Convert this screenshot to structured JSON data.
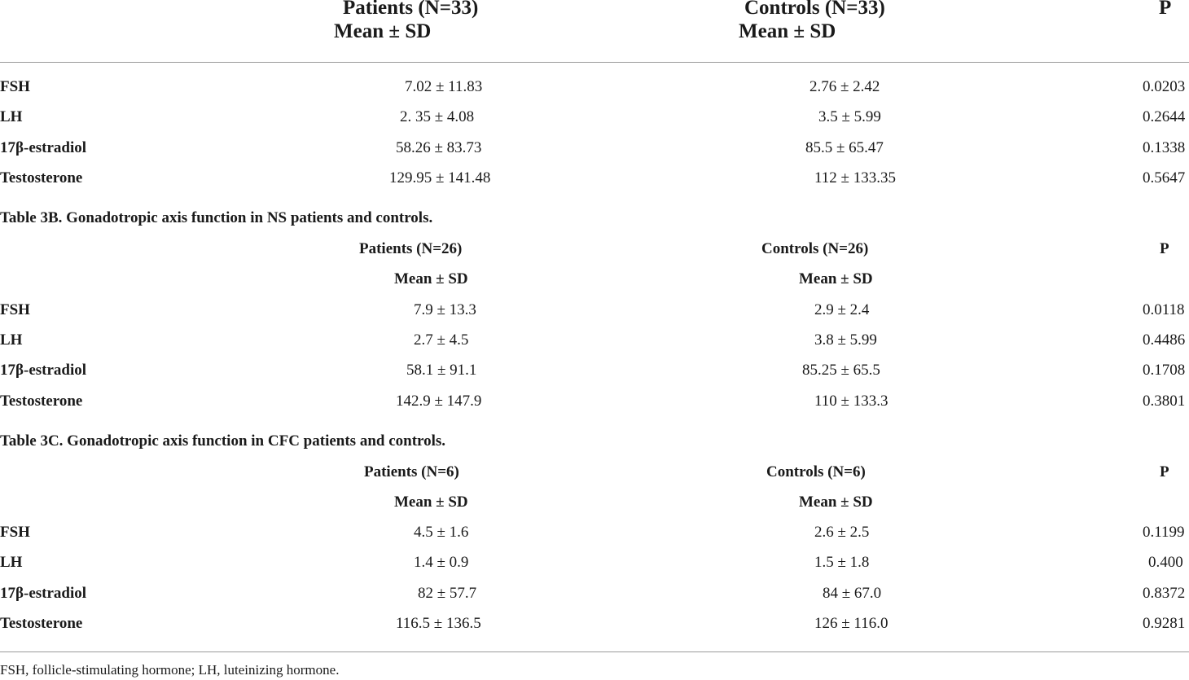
{
  "table_a": {
    "header": {
      "patients": "Patients (N=33)",
      "patients_stat": "Mean ± SD",
      "controls": "Controls (N=33)",
      "controls_stat": "Mean ± SD",
      "p": "P"
    },
    "rows": [
      {
        "label": "FSH",
        "patients": "7.02 ± 11.83",
        "controls": "2.76 ± 2.42",
        "p": "0.0203"
      },
      {
        "label": "LH",
        "patients": "2. 35 ± 4.08",
        "controls": "3.5 ± 5.99",
        "p": "0.2644"
      },
      {
        "label": "17β-estradiol",
        "patients": "58.26 ± 83.73",
        "controls": "85.5 ± 65.47",
        "p": "0.1338"
      },
      {
        "label": "Testosterone",
        "patients": "129.95 ± 141.48",
        "controls": "112 ± 133.35",
        "p": "0.5647"
      }
    ]
  },
  "table_b": {
    "caption": "Table 3B. Gonadotropic axis function in NS patients and controls.",
    "header": {
      "patients": "Patients (N=26)",
      "patients_stat": "Mean ± SD",
      "controls": "Controls (N=26)",
      "controls_stat": "Mean ± SD",
      "p": "P"
    },
    "rows": [
      {
        "label": "FSH",
        "patients": "7.9 ± 13.3",
        "controls": "2.9 ± 2.4",
        "p": "0.0118"
      },
      {
        "label": "LH",
        "patients": "2.7 ± 4.5",
        "controls": "3.8 ± 5.99",
        "p": "0.4486"
      },
      {
        "label": "17β-estradiol",
        "patients": "58.1 ± 91.1",
        "controls": "85.25 ± 65.5",
        "p": "0.1708"
      },
      {
        "label": "Testosterone",
        "patients": "142.9 ± 147.9",
        "controls": "110 ± 133.3",
        "p": "0.3801"
      }
    ]
  },
  "table_c": {
    "caption": "Table 3C. Gonadotropic axis function in CFC patients and controls.",
    "header": {
      "patients": "Patients (N=6)",
      "patients_stat": "Mean ± SD",
      "controls": "Controls (N=6)",
      "controls_stat": "Mean ± SD",
      "p": "P"
    },
    "rows": [
      {
        "label": "FSH",
        "patients": "4.5 ± 1.6",
        "controls": "2.6 ± 2.5",
        "p": "0.1199"
      },
      {
        "label": "LH",
        "patients": "1.4 ± 0.9",
        "controls": "1.5 ± 1.8",
        "p": "0.400"
      },
      {
        "label": "17β-estradiol",
        "patients": "82 ± 57.7",
        "controls": "84 ± 67.0",
        "p": "0.8372"
      },
      {
        "label": "Testosterone",
        "patients": "116.5 ± 136.5",
        "controls": "126 ± 116.0",
        "p": "0.9281"
      }
    ]
  },
  "footnote": "FSH, follicle-stimulating hormone; LH, luteinizing hormone.",
  "colors": {
    "text": "#1a1a1a",
    "rule": "#9a9a9a",
    "background": "#ffffff"
  }
}
